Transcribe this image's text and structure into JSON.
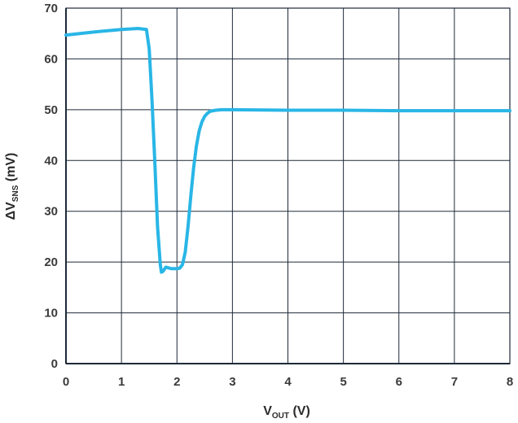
{
  "chart_data": {
    "type": "line",
    "title": "",
    "xlabel": {
      "main": "V",
      "sub": "OUT",
      "unit": " (V)"
    },
    "ylabel": {
      "main": "ΔV",
      "sub": "SNS",
      "unit": " (mV)"
    },
    "xlim": [
      0,
      8
    ],
    "ylim": [
      0,
      70
    ],
    "xticks": [
      "0",
      "1",
      "2",
      "3",
      "4",
      "5",
      "6",
      "7",
      "8"
    ],
    "yticks": [
      "0",
      "10",
      "20",
      "30",
      "40",
      "50",
      "60",
      "70"
    ],
    "grid": true,
    "series": [
      {
        "color": "#29b6e6",
        "x": [
          0,
          0.5,
          1.0,
          1.3,
          1.45,
          1.5,
          1.55,
          1.6,
          1.65,
          1.7,
          1.72,
          1.75,
          1.8,
          1.9,
          2.0,
          2.05,
          2.1,
          2.15,
          2.2,
          2.25,
          2.3,
          2.35,
          2.4,
          2.45,
          2.5,
          2.55,
          2.6,
          2.7,
          2.8,
          3.0,
          4.0,
          5.0,
          6.0,
          7.0,
          8.0
        ],
        "y": [
          64.7,
          65.3,
          65.8,
          66.0,
          65.8,
          62.0,
          52.0,
          40.0,
          27.0,
          19.5,
          18.0,
          18.2,
          19.0,
          18.7,
          18.7,
          18.8,
          19.5,
          22.0,
          27.0,
          33.0,
          38.5,
          42.8,
          45.8,
          47.6,
          48.7,
          49.3,
          49.7,
          49.9,
          50.0,
          50.0,
          49.9,
          49.9,
          49.8,
          49.8,
          49.8
        ]
      }
    ]
  }
}
